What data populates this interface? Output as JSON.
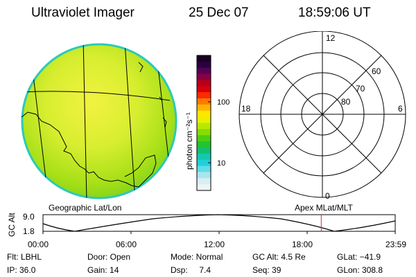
{
  "header": {
    "instrument": "Ultraviolet Imager",
    "date": "25 Dec 07",
    "time": "18:59:06 UT"
  },
  "colorbar": {
    "unit_label": "photon cm⁻²s⁻¹",
    "ticks": [
      "100",
      "10"
    ],
    "colors": [
      "#1a0022",
      "#2a0040",
      "#550055",
      "#8a0044",
      "#b5001a",
      "#d8000a",
      "#ff2a00",
      "#ff7a00",
      "#ffb400",
      "#ffe500",
      "#e8f000",
      "#b8e800",
      "#86dd00",
      "#4ccf10",
      "#22c430",
      "#10c070",
      "#14c8b0",
      "#20d0d8",
      "#60dce8",
      "#a8e6ee",
      "#d8eef2",
      "#eef4f6"
    ]
  },
  "polar": {
    "labels": {
      "top": "12",
      "bottom": "0",
      "left": "18",
      "right": "6",
      "lat60": "60",
      "lat70": "70",
      "lat80": "80"
    }
  },
  "map_labels": {
    "left": "Geographic Lat/Lon",
    "right": "Apex MLat/MLT"
  },
  "timeline": {
    "yaxis_label": "GC Alt",
    "ymax": "9.0",
    "ymin": "1.8",
    "ticks": [
      "00:00",
      "06:00",
      "12:00",
      "18:00",
      "23:59"
    ],
    "current_time_fraction": 0.79
  },
  "info": {
    "filter": "Flt: LBHL",
    "ip": "IP: 36.0",
    "door": "Door: Open",
    "gain": "Gain: 14",
    "mode": "Mode: Normal",
    "dsp": "Dsp:     7.4",
    "gc_alt": "GC Alt: 4.5 Re",
    "seq": "Seq: 39",
    "glat": "GLat: −41.9",
    "glon": "GLon: 308.8"
  }
}
